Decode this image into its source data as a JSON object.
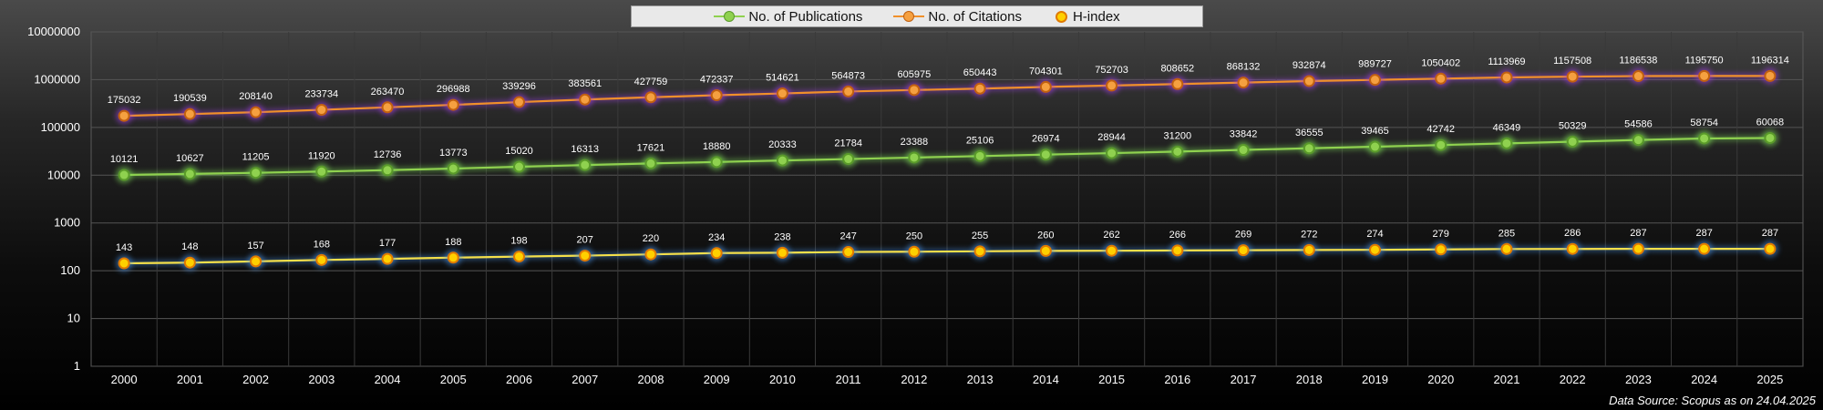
{
  "chart_data": {
    "type": "line",
    "title": "",
    "xlabel": "",
    "ylabel": "",
    "yscale": "log",
    "ylim": [
      1,
      10000000
    ],
    "y_ticks": [
      "1",
      "10",
      "100",
      "1000",
      "10000",
      "100000",
      "1000000",
      "10000000"
    ],
    "grid": true,
    "legend_position": "top-center",
    "x": [
      "2000",
      "2001",
      "2002",
      "2003",
      "2004",
      "2005",
      "2006",
      "2007",
      "2008",
      "2009",
      "2010",
      "2011",
      "2012",
      "2013",
      "2014",
      "2015",
      "2016",
      "2017",
      "2018",
      "2019",
      "2020",
      "2021",
      "2022",
      "2023",
      "2024",
      "2025"
    ],
    "series": [
      {
        "name": "No. of Publications",
        "line_color": "#8fd14f",
        "marker_color": "#8fd14f",
        "marker_edge": "#5a9a2a",
        "glow_color": "#7ed957",
        "show_line": true,
        "values": [
          10121,
          10627,
          11205,
          11920,
          12736,
          13773,
          15020,
          16313,
          17621,
          18880,
          20333,
          21784,
          23388,
          25106,
          26974,
          28944,
          31200,
          33842,
          36555,
          39465,
          42742,
          46349,
          50329,
          54586,
          58754,
          60068
        ]
      },
      {
        "name": "No. of Citations",
        "line_color": "#f0902a",
        "marker_color": "#f5a040",
        "marker_edge": "#c06010",
        "glow_color": "#a040e0",
        "show_line": true,
        "values": [
          175032,
          190539,
          208140,
          233734,
          263470,
          296988,
          339296,
          383561,
          427759,
          472337,
          514621,
          564873,
          605975,
          650443,
          704301,
          752703,
          808652,
          868132,
          932874,
          989727,
          1050402,
          1113969,
          1157508,
          1186538,
          1195750,
          1196314
        ]
      },
      {
        "name": "H-index",
        "line_color": "#f5e04a",
        "marker_color": "#ffd000",
        "marker_edge": "#e07a00",
        "glow_color": "#4a90e0",
        "show_line": true,
        "values": [
          143,
          148,
          157,
          168,
          177,
          188,
          198,
          207,
          220,
          234,
          238,
          247,
          250,
          255,
          260,
          262,
          266,
          269,
          272,
          274,
          279,
          285,
          286,
          287,
          287,
          287
        ]
      }
    ]
  },
  "source_note": "Data Source: Scopus as on 24.04.2025"
}
